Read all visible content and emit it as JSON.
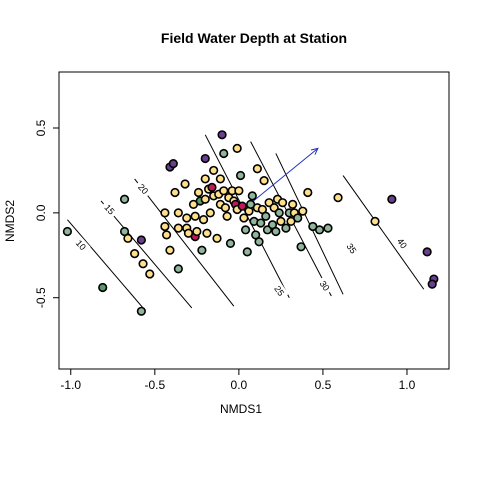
{
  "chart_data": {
    "type": "scatter",
    "title": "Field Water Depth at Station",
    "xlabel": "NMDS1",
    "ylabel": "NMDS2",
    "xlim": [
      -1.07,
      1.25
    ],
    "ylim": [
      -0.92,
      0.83
    ],
    "x_ticks": [
      -1.0,
      -0.5,
      0.0,
      0.5,
      1.0
    ],
    "x_tick_labels": [
      "-1.0",
      "-0.5",
      "0.0",
      "0.5",
      "1.0"
    ],
    "y_ticks": [
      -0.5,
      0.0,
      0.5
    ],
    "y_tick_labels": [
      "-0.5",
      "0.0",
      "0.5"
    ],
    "grid": false,
    "colors": {
      "yellow": "#fee08b",
      "green_gray": "#8fb59a",
      "dark_green": "#5a9a6a",
      "purple": "#6b3f8f",
      "magenta": "#c2185b",
      "arrow": "#2233bb",
      "contour": "#000000"
    },
    "contours": [
      {
        "label": "10",
        "start": [
          -1.02,
          -0.04
        ],
        "end": [
          -0.57,
          -0.56
        ],
        "label_at": [
          -0.94,
          -0.19
        ],
        "label_angle": 48
      },
      {
        "label": "15",
        "start": [
          -0.82,
          0.07
        ],
        "end": [
          -0.28,
          -0.56
        ],
        "label_at": [
          -0.77,
          0.02
        ],
        "label_angle": 48
      },
      {
        "label": "20",
        "start": [
          -0.62,
          0.2
        ],
        "end": [
          -0.03,
          -0.55
        ],
        "label_at": [
          -0.57,
          0.14
        ],
        "label_angle": 48
      },
      {
        "label": "25",
        "start": [
          -0.2,
          0.46
        ],
        "end": [
          0.3,
          -0.5
        ],
        "label_at": [
          0.24,
          -0.46
        ],
        "label_angle": 55
      },
      {
        "label": "30",
        "start": [
          0.07,
          0.42
        ],
        "end": [
          0.55,
          -0.49
        ],
        "label_at": [
          0.51,
          -0.43
        ],
        "label_angle": 55
      },
      {
        "label": "35",
        "start": [
          0.22,
          0.35
        ],
        "end": [
          0.62,
          -0.48
        ],
        "label_at": [
          0.67,
          -0.21
        ],
        "label_angle": 55
      },
      {
        "label": "40",
        "start": [
          0.62,
          0.22
        ],
        "end": [
          1.1,
          -0.45
        ],
        "label_at": [
          0.97,
          -0.18
        ],
        "label_angle": 55
      }
    ],
    "arrow": {
      "from": [
        0.0,
        0.0
      ],
      "to": [
        0.47,
        0.38
      ]
    },
    "points": [
      {
        "x": -1.02,
        "y": -0.11,
        "c": "green_gray"
      },
      {
        "x": -0.81,
        "y": -0.44,
        "c": "dark_green"
      },
      {
        "x": -0.68,
        "y": 0.08,
        "c": "green_gray"
      },
      {
        "x": -0.68,
        "y": -0.11,
        "c": "green_gray"
      },
      {
        "x": -0.66,
        "y": -0.15,
        "c": "yellow"
      },
      {
        "x": -0.62,
        "y": -0.24,
        "c": "yellow"
      },
      {
        "x": -0.58,
        "y": -0.16,
        "c": "purple"
      },
      {
        "x": -0.57,
        "y": -0.3,
        "c": "yellow"
      },
      {
        "x": -0.58,
        "y": -0.58,
        "c": "green_gray"
      },
      {
        "x": -0.53,
        "y": -0.36,
        "c": "yellow"
      },
      {
        "x": -0.44,
        "y": 0.0,
        "c": "yellow"
      },
      {
        "x": -0.44,
        "y": -0.08,
        "c": "yellow"
      },
      {
        "x": -0.43,
        "y": -0.13,
        "c": "yellow"
      },
      {
        "x": -0.41,
        "y": -0.22,
        "c": "yellow"
      },
      {
        "x": -0.41,
        "y": 0.27,
        "c": "purple"
      },
      {
        "x": -0.39,
        "y": 0.29,
        "c": "purple"
      },
      {
        "x": -0.38,
        "y": 0.12,
        "c": "yellow"
      },
      {
        "x": -0.36,
        "y": 0.0,
        "c": "yellow"
      },
      {
        "x": -0.36,
        "y": -0.09,
        "c": "yellow"
      },
      {
        "x": -0.36,
        "y": -0.33,
        "c": "green_gray"
      },
      {
        "x": -0.32,
        "y": 0.17,
        "c": "yellow"
      },
      {
        "x": -0.31,
        "y": -0.03,
        "c": "yellow"
      },
      {
        "x": -0.31,
        "y": -0.09,
        "c": "yellow"
      },
      {
        "x": -0.3,
        "y": -0.12,
        "c": "yellow"
      },
      {
        "x": -0.27,
        "y": 0.05,
        "c": "yellow"
      },
      {
        "x": -0.26,
        "y": -0.14,
        "c": "magenta"
      },
      {
        "x": -0.26,
        "y": -0.02,
        "c": "yellow"
      },
      {
        "x": -0.25,
        "y": -0.11,
        "c": "yellow"
      },
      {
        "x": -0.24,
        "y": 0.12,
        "c": "yellow"
      },
      {
        "x": -0.23,
        "y": 0.07,
        "c": "dark_green"
      },
      {
        "x": -0.22,
        "y": -0.22,
        "c": "green_gray"
      },
      {
        "x": -0.21,
        "y": -0.04,
        "c": "yellow"
      },
      {
        "x": -0.2,
        "y": 0.32,
        "c": "purple"
      },
      {
        "x": -0.2,
        "y": 0.2,
        "c": "yellow"
      },
      {
        "x": -0.2,
        "y": 0.08,
        "c": "yellow"
      },
      {
        "x": -0.19,
        "y": -0.12,
        "c": "yellow"
      },
      {
        "x": -0.18,
        "y": 0.14,
        "c": "yellow"
      },
      {
        "x": -0.17,
        "y": 0.0,
        "c": "yellow"
      },
      {
        "x": -0.16,
        "y": 0.15,
        "c": "magenta"
      },
      {
        "x": -0.15,
        "y": 0.25,
        "c": "yellow"
      },
      {
        "x": -0.15,
        "y": 0.1,
        "c": "yellow"
      },
      {
        "x": -0.13,
        "y": -0.15,
        "c": "yellow"
      },
      {
        "x": -0.12,
        "y": 0.11,
        "c": "yellow"
      },
      {
        "x": -0.11,
        "y": 0.05,
        "c": "yellow"
      },
      {
        "x": -0.11,
        "y": 0.2,
        "c": "yellow"
      },
      {
        "x": -0.1,
        "y": 0.46,
        "c": "purple"
      },
      {
        "x": -0.09,
        "y": 0.35,
        "c": "green_gray"
      },
      {
        "x": -0.09,
        "y": 0.13,
        "c": "yellow"
      },
      {
        "x": -0.08,
        "y": 0.03,
        "c": "yellow"
      },
      {
        "x": -0.07,
        "y": -0.02,
        "c": "yellow"
      },
      {
        "x": -0.06,
        "y": 0.09,
        "c": "yellow"
      },
      {
        "x": -0.05,
        "y": -0.18,
        "c": "green_gray"
      },
      {
        "x": -0.04,
        "y": 0.13,
        "c": "yellow"
      },
      {
        "x": -0.03,
        "y": 0.07,
        "c": "yellow"
      },
      {
        "x": -0.02,
        "y": 0.05,
        "c": "magenta"
      },
      {
        "x": -0.01,
        "y": 0.38,
        "c": "yellow"
      },
      {
        "x": -0.01,
        "y": 0.02,
        "c": "yellow"
      },
      {
        "x": 0.0,
        "y": 0.13,
        "c": "yellow"
      },
      {
        "x": 0.01,
        "y": 0.22,
        "c": "green_gray"
      },
      {
        "x": 0.02,
        "y": 0.04,
        "c": "magenta"
      },
      {
        "x": 0.03,
        "y": -0.03,
        "c": "yellow"
      },
      {
        "x": 0.04,
        "y": -0.1,
        "c": "green_gray"
      },
      {
        "x": 0.05,
        "y": -0.23,
        "c": "green_gray"
      },
      {
        "x": 0.06,
        "y": 0.01,
        "c": "yellow"
      },
      {
        "x": 0.07,
        "y": 0.05,
        "c": "green_gray"
      },
      {
        "x": 0.08,
        "y": 0.1,
        "c": "green_gray"
      },
      {
        "x": 0.09,
        "y": -0.05,
        "c": "green_gray"
      },
      {
        "x": 0.1,
        "y": -0.13,
        "c": "green_gray"
      },
      {
        "x": 0.11,
        "y": 0.03,
        "c": "yellow"
      },
      {
        "x": 0.11,
        "y": 0.26,
        "c": "yellow"
      },
      {
        "x": 0.12,
        "y": -0.17,
        "c": "green_gray"
      },
      {
        "x": 0.13,
        "y": -0.06,
        "c": "green_gray"
      },
      {
        "x": 0.14,
        "y": 0.02,
        "c": "yellow"
      },
      {
        "x": 0.15,
        "y": 0.19,
        "c": "yellow"
      },
      {
        "x": 0.16,
        "y": -0.02,
        "c": "green_gray"
      },
      {
        "x": 0.17,
        "y": -0.1,
        "c": "green_gray"
      },
      {
        "x": 0.18,
        "y": 0.06,
        "c": "yellow"
      },
      {
        "x": 0.2,
        "y": -0.07,
        "c": "green_gray"
      },
      {
        "x": 0.21,
        "y": 0.03,
        "c": "yellow"
      },
      {
        "x": 0.22,
        "y": -0.11,
        "c": "green_gray"
      },
      {
        "x": 0.23,
        "y": 0.08,
        "c": "yellow"
      },
      {
        "x": 0.24,
        "y": 0.0,
        "c": "green_gray"
      },
      {
        "x": 0.25,
        "y": -0.05,
        "c": "yellow"
      },
      {
        "x": 0.26,
        "y": 0.06,
        "c": "yellow"
      },
      {
        "x": 0.28,
        "y": -0.09,
        "c": "green_gray"
      },
      {
        "x": 0.3,
        "y": 0.0,
        "c": "green_gray"
      },
      {
        "x": 0.31,
        "y": -0.05,
        "c": "yellow"
      },
      {
        "x": 0.32,
        "y": 0.05,
        "c": "yellow"
      },
      {
        "x": 0.33,
        "y": 0.0,
        "c": "yellow"
      },
      {
        "x": 0.35,
        "y": -0.03,
        "c": "green_gray"
      },
      {
        "x": 0.37,
        "y": -0.2,
        "c": "green_gray"
      },
      {
        "x": 0.38,
        "y": 0.01,
        "c": "yellow"
      },
      {
        "x": 0.41,
        "y": 0.12,
        "c": "yellow"
      },
      {
        "x": 0.44,
        "y": -0.08,
        "c": "green_gray"
      },
      {
        "x": 0.48,
        "y": -0.1,
        "c": "green_gray"
      },
      {
        "x": 0.53,
        "y": -0.09,
        "c": "green_gray"
      },
      {
        "x": 0.59,
        "y": 0.09,
        "c": "yellow"
      },
      {
        "x": 0.81,
        "y": -0.05,
        "c": "yellow"
      },
      {
        "x": 0.91,
        "y": 0.08,
        "c": "purple"
      },
      {
        "x": 1.12,
        "y": -0.23,
        "c": "purple"
      },
      {
        "x": 1.16,
        "y": -0.39,
        "c": "purple"
      },
      {
        "x": 1.15,
        "y": -0.42,
        "c": "purple"
      }
    ]
  }
}
